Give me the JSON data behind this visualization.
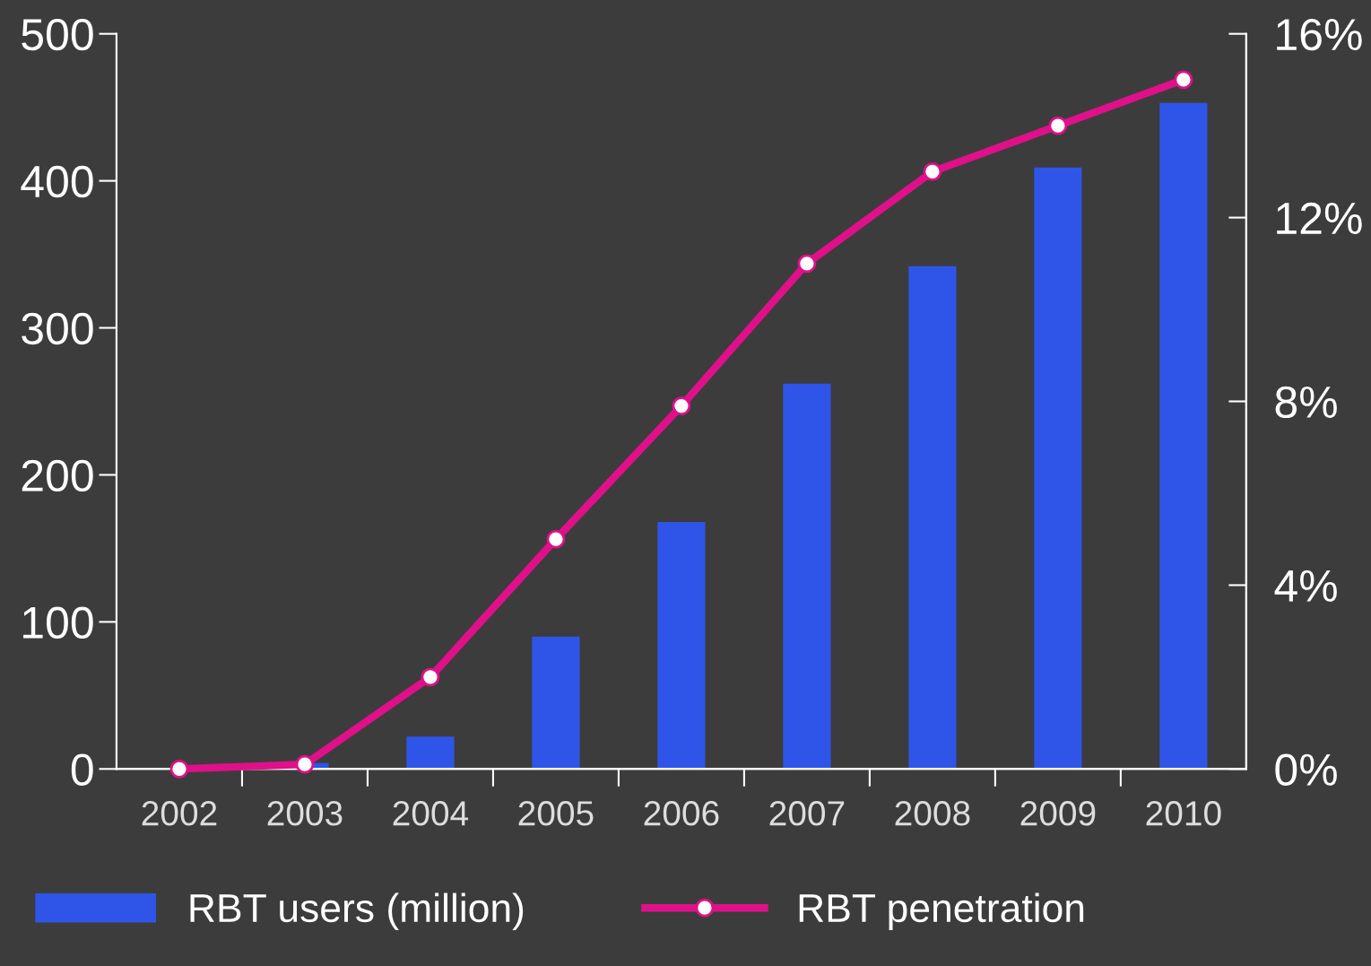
{
  "chart_data": {
    "type": "bar",
    "categories": [
      "2002",
      "2003",
      "2004",
      "2005",
      "2006",
      "2007",
      "2008",
      "2009",
      "2010"
    ],
    "series": [
      {
        "name": "RBT users (million)",
        "color": "#2f55e8",
        "values": [
          0,
          4,
          22,
          90,
          168,
          262,
          342,
          409,
          453
        ]
      },
      {
        "name": "RBT penetration",
        "type": "line",
        "axis": "y2",
        "color": "#e0108a",
        "marker": "circle",
        "line_style": "solid",
        "values": [
          0,
          0.1,
          2.0,
          5.0,
          7.9,
          11.0,
          13.0,
          14.0,
          15.0
        ]
      }
    ],
    "ylim": [
      0,
      500
    ],
    "yticks": [
      0,
      100,
      200,
      300,
      400,
      500
    ],
    "y2lim": [
      0,
      16
    ],
    "y2ticks": [
      {
        "value": 0,
        "label": "0%"
      },
      {
        "value": 4,
        "label": "4%"
      },
      {
        "value": 8,
        "label": "8%"
      },
      {
        "value": 12,
        "label": "12%"
      },
      {
        "value": 16,
        "label": "16%"
      }
    ],
    "grid": false,
    "legend": "bottom"
  }
}
